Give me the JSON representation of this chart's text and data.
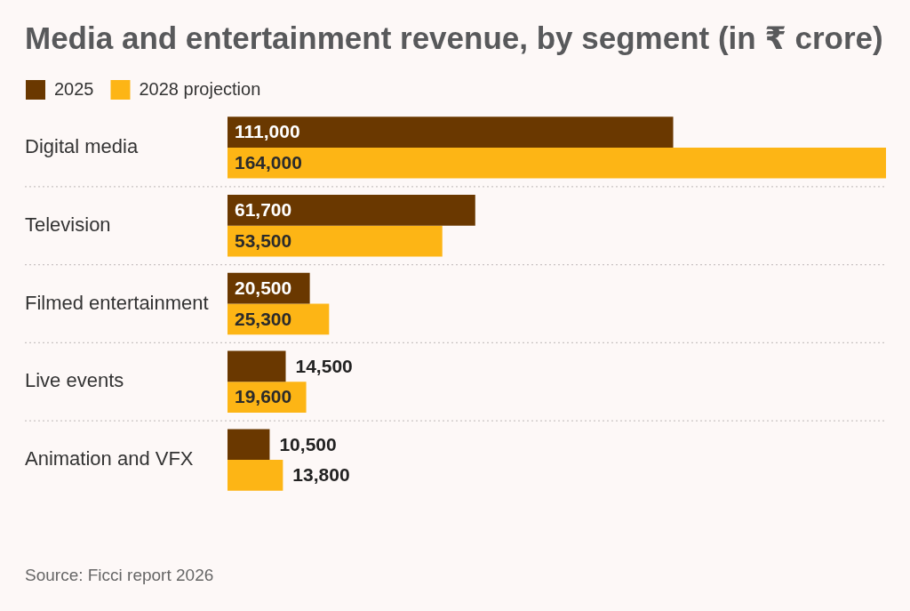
{
  "chart_data": {
    "type": "bar",
    "orientation": "horizontal",
    "title": "Media and entertainment revenue, by segment (in ₹ crore)",
    "categories": [
      "Digital media",
      "Television",
      "Filmed entertainment",
      "Live events",
      "Animation and VFX"
    ],
    "series": [
      {
        "name": "2025",
        "color": "#6a3800",
        "values": [
          111000,
          61700,
          20500,
          14500,
          10500
        ],
        "value_labels": [
          "111,000",
          "61,700",
          "20,500",
          "14,500",
          "10,500"
        ]
      },
      {
        "name": "2028 projection",
        "color": "#fdb515",
        "values": [
          164000,
          53500,
          25300,
          19600,
          13800
        ],
        "value_labels": [
          "164,000",
          "53,500",
          "25,300",
          "19,600",
          "13,800"
        ]
      }
    ],
    "legend": "top left",
    "grid": "y",
    "tick_labels": "y",
    "annotations": [
      "Source: Ficci report 2026"
    ]
  }
}
